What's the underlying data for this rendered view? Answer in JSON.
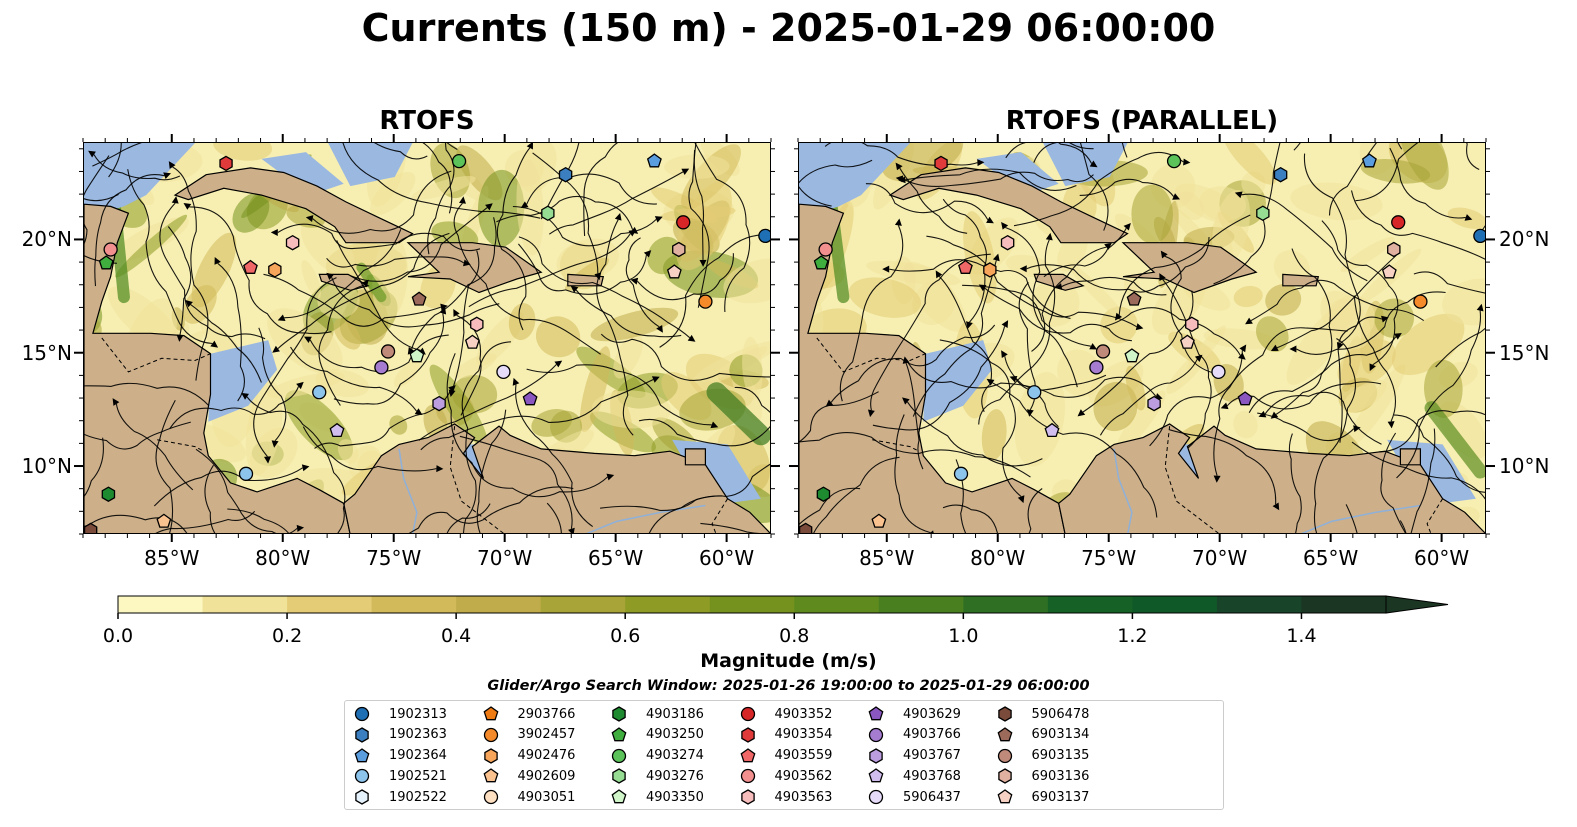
{
  "title": "Currents (150 m) - 2025-01-29 06:00:00",
  "panels": [
    {
      "title": "RTOFS"
    },
    {
      "title": "RTOFS (PARALLEL)"
    }
  ],
  "map": {
    "lon_range": [
      -89,
      -58
    ],
    "lat_range": [
      7,
      24.3
    ],
    "x_ticks": [
      {
        "value": -85,
        "label": "85°W"
      },
      {
        "value": -80,
        "label": "80°W"
      },
      {
        "value": -75,
        "label": "75°W"
      },
      {
        "value": -70,
        "label": "70°W"
      },
      {
        "value": -65,
        "label": "65°W"
      },
      {
        "value": -60,
        "label": "60°W"
      }
    ],
    "y_ticks": [
      {
        "value": 10,
        "label": "10°N"
      },
      {
        "value": 15,
        "label": "15°N"
      },
      {
        "value": 20,
        "label": "20°N"
      }
    ],
    "colors": {
      "ocean": "#f7efb2",
      "land": "#cdb08a",
      "shallow": "#9ab8e0",
      "stream": "#000000"
    }
  },
  "colorbar": {
    "label": "Magnitude (m/s)",
    "ticks": [
      {
        "value": 0.0,
        "label": "0.0"
      },
      {
        "value": 0.2,
        "label": "0.2"
      },
      {
        "value": 0.4,
        "label": "0.4"
      },
      {
        "value": 0.6,
        "label": "0.6"
      },
      {
        "value": 0.8,
        "label": "0.8"
      },
      {
        "value": 1.0,
        "label": "1.0"
      },
      {
        "value": 1.2,
        "label": "1.2"
      },
      {
        "value": 1.4,
        "label": "1.4"
      }
    ],
    "range": [
      0,
      1.5
    ],
    "extend": "max",
    "colors": [
      "#fdf7c2",
      "#f1e29a",
      "#e3cc75",
      "#d2b95a",
      "#c0ac4a",
      "#a8a437",
      "#8e9c26",
      "#76921e",
      "#5f8a1e",
      "#4a7f20",
      "#2f6f23",
      "#166226",
      "#0f5828",
      "#18452a",
      "#1b3622"
    ]
  },
  "search_window": "Glider/Argo Search Window: 2025-01-26 19:00:00 to 2025-01-29 06:00:00",
  "legend": [
    {
      "id": "1902313",
      "marker": "circle",
      "color": "#1f6fb4"
    },
    {
      "id": "1902363",
      "marker": "hexagon",
      "color": "#3b7fc0"
    },
    {
      "id": "1902364",
      "marker": "pentagon",
      "color": "#5b9ee0"
    },
    {
      "id": "1902521",
      "marker": "circle",
      "color": "#8cc4ec"
    },
    {
      "id": "1902522",
      "marker": "hexagon",
      "color": "#e6f2fb"
    },
    {
      "id": "2903766",
      "marker": "pentagon",
      "color": "#ef7b14"
    },
    {
      "id": "3902457",
      "marker": "circle",
      "color": "#f58a2a"
    },
    {
      "id": "4902476",
      "marker": "hexagon",
      "color": "#f6a55a"
    },
    {
      "id": "4902609",
      "marker": "pentagon",
      "color": "#f9c28f"
    },
    {
      "id": "4903051",
      "marker": "circle",
      "color": "#fde0c2"
    },
    {
      "id": "4903186",
      "marker": "hexagon",
      "color": "#1f8b30"
    },
    {
      "id": "4903250",
      "marker": "pentagon",
      "color": "#3fae3e"
    },
    {
      "id": "4903274",
      "marker": "circle",
      "color": "#5cc25a"
    },
    {
      "id": "4903276",
      "marker": "hexagon",
      "color": "#96dc92"
    },
    {
      "id": "4903350",
      "marker": "pentagon",
      "color": "#cff5c9"
    },
    {
      "id": "4903352",
      "marker": "circle",
      "color": "#d62628"
    },
    {
      "id": "4903354",
      "marker": "hexagon",
      "color": "#e03a3a"
    },
    {
      "id": "4903559",
      "marker": "pentagon",
      "color": "#f06767"
    },
    {
      "id": "4903562",
      "marker": "circle",
      "color": "#f29090"
    },
    {
      "id": "4903563",
      "marker": "hexagon",
      "color": "#f7bcbc"
    },
    {
      "id": "4903629",
      "marker": "pentagon",
      "color": "#8a56c0"
    },
    {
      "id": "4903766",
      "marker": "circle",
      "color": "#a57cd0"
    },
    {
      "id": "4903767",
      "marker": "hexagon",
      "color": "#bc9ee0"
    },
    {
      "id": "4903768",
      "marker": "pentagon",
      "color": "#d2bdef"
    },
    {
      "id": "5906437",
      "marker": "circle",
      "color": "#e6dbf8"
    },
    {
      "id": "5906478",
      "marker": "hexagon",
      "color": "#7a4a3a"
    },
    {
      "id": "6903134",
      "marker": "pentagon",
      "color": "#9c6a5a"
    },
    {
      "id": "6903135",
      "marker": "circle",
      "color": "#c08a7a"
    },
    {
      "id": "6903136",
      "marker": "hexagon",
      "color": "#e0b0a0"
    },
    {
      "id": "6903137",
      "marker": "pentagon",
      "color": "#f7d2c4"
    }
  ],
  "observations": [
    {
      "id": "4903354",
      "lon": -82.6,
      "lat": 23.4
    },
    {
      "id": "4903274",
      "lon": -72.1,
      "lat": 23.5
    },
    {
      "id": "1902364",
      "lon": -63.3,
      "lat": 23.5
    },
    {
      "id": "1902363",
      "lon": -67.3,
      "lat": 22.9
    },
    {
      "id": "4903276",
      "lon": -68.1,
      "lat": 21.2
    },
    {
      "id": "4903352",
      "lon": -62.0,
      "lat": 20.8
    },
    {
      "id": "1902313",
      "lon": -58.3,
      "lat": 20.2
    },
    {
      "id": "4903562",
      "lon": -87.8,
      "lat": 19.6
    },
    {
      "id": "4903250",
      "lon": -88.0,
      "lat": 19.0
    },
    {
      "id": "4903563",
      "lon": -79.6,
      "lat": 19.9
    },
    {
      "id": "4903559",
      "lon": -81.5,
      "lat": 18.8
    },
    {
      "id": "4902476",
      "lon": -80.4,
      "lat": 18.7
    },
    {
      "id": "6903136",
      "lon": -62.2,
      "lat": 19.6
    },
    {
      "id": "6903137",
      "lon": -62.4,
      "lat": 18.6
    },
    {
      "id": "6903134",
      "lon": -73.9,
      "lat": 17.4
    },
    {
      "id": "3902457",
      "lon": -61.0,
      "lat": 17.3
    },
    {
      "id": "6903135",
      "lon": -75.3,
      "lat": 15.1
    },
    {
      "id": "4903350",
      "lon": -74.0,
      "lat": 14.9
    },
    {
      "id": "4903563",
      "lon": -71.3,
      "lat": 16.3
    },
    {
      "id": "6903137",
      "lon": -71.5,
      "lat": 15.5
    },
    {
      "id": "4903766",
      "lon": -75.6,
      "lat": 14.4
    },
    {
      "id": "5906437",
      "lon": -70.1,
      "lat": 14.2
    },
    {
      "id": "1902521",
      "lon": -78.4,
      "lat": 13.3
    },
    {
      "id": "4903767",
      "lon": -73.0,
      "lat": 12.8
    },
    {
      "id": "4903629",
      "lon": -68.9,
      "lat": 13.0
    },
    {
      "id": "4903768",
      "lon": -77.6,
      "lat": 11.6
    },
    {
      "id": "1902521",
      "lon": -81.7,
      "lat": 9.7
    },
    {
      "id": "4903186",
      "lon": -87.9,
      "lat": 8.8
    },
    {
      "id": "4902609",
      "lon": -85.4,
      "lat": 7.6
    },
    {
      "id": "5906478",
      "lon": -88.7,
      "lat": 7.2
    }
  ]
}
